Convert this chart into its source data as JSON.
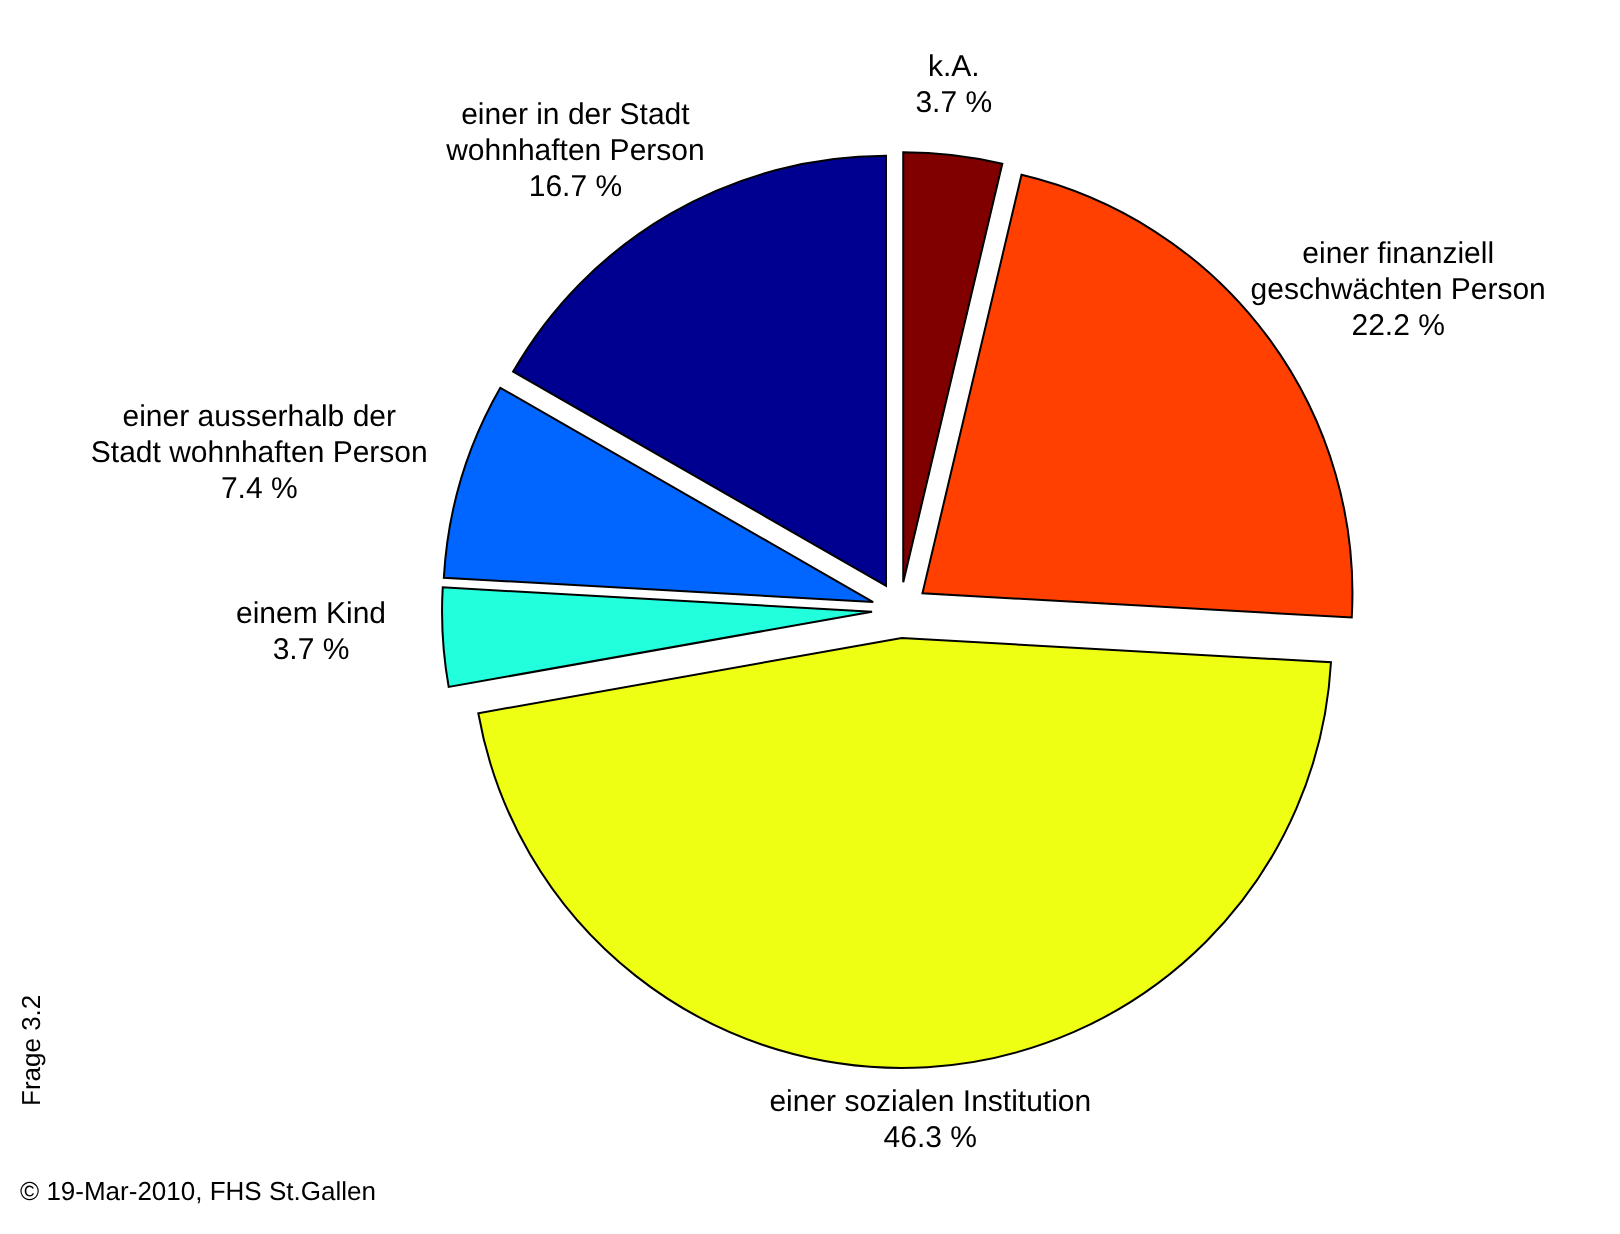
{
  "chart_data": {
    "type": "pie",
    "categories": [
      "k.A.",
      "einer finanziell\ngeschwächten Person",
      "einer sozialen Institution",
      "einem Kind",
      "einer ausserhalb der\nStadt wohnhaften Person",
      "einer in der Stadt\nwohnhaften Person"
    ],
    "values": [
      3.7,
      22.2,
      46.3,
      3.7,
      7.4,
      16.7
    ],
    "value_labels": [
      "3.7 %",
      "22.2 %",
      "46.3 %",
      "3.7 %",
      "7.4 %",
      "16.7 %"
    ],
    "colors": [
      "#800000",
      "#ff4000",
      "#eeff14",
      "#22ffdd",
      "#0066ff",
      "#000090"
    ],
    "annotations": [
      "Frage 3.2",
      "© 19-Mar-2010, FHS St.Gallen"
    ]
  }
}
